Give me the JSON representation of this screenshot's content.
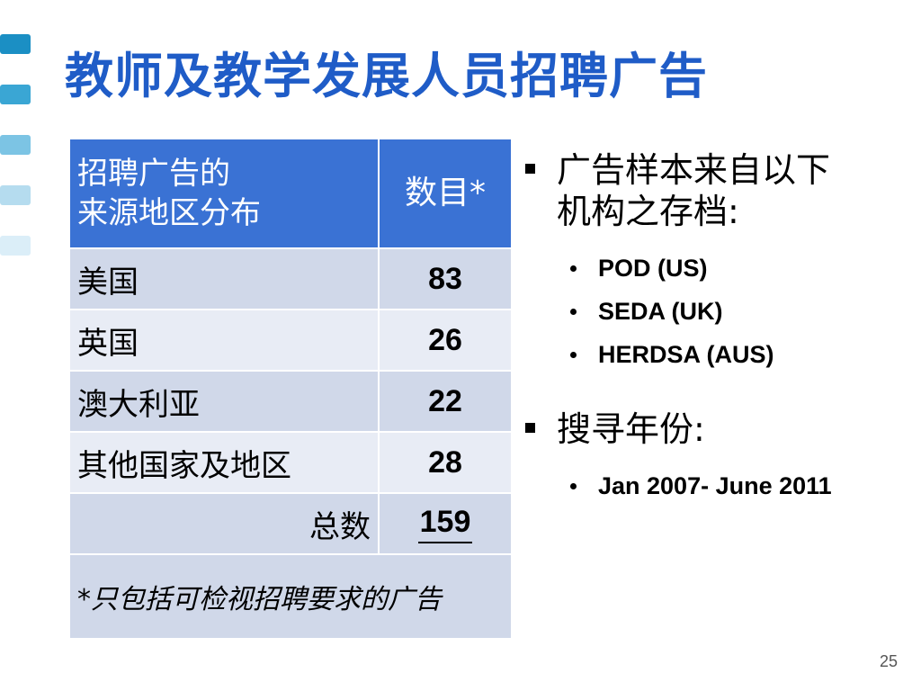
{
  "slide": {
    "title": "教师及教学发展人员招聘广告",
    "page_number": "25",
    "deco_colors": [
      "#1b8fc4",
      "#3aa6d4",
      "#7cc4e4",
      "#b5dcef",
      "#dbeef8"
    ]
  },
  "table": {
    "header": {
      "col1_line1": "招聘广告的",
      "col1_line2": "来源地区分布",
      "col2": "数目*"
    },
    "rows": [
      {
        "region": "美国",
        "count": "83"
      },
      {
        "region": "英国",
        "count": "26"
      },
      {
        "region": "澳大利亚",
        "count": "22"
      },
      {
        "region": "其他国家及地区",
        "count": "28"
      }
    ],
    "total_label": "总数",
    "total_value": "159",
    "note": "*只包括可检视招聘要求的广告"
  },
  "right": {
    "bullet1_line1": "广告样本来自以下",
    "bullet1_line2": "机构之存档:",
    "sources": [
      "POD (US)",
      "SEDA (UK)",
      "HERDSA (AUS)"
    ],
    "bullet2": "搜寻年份:",
    "years": "Jan 2007- June 2011"
  }
}
